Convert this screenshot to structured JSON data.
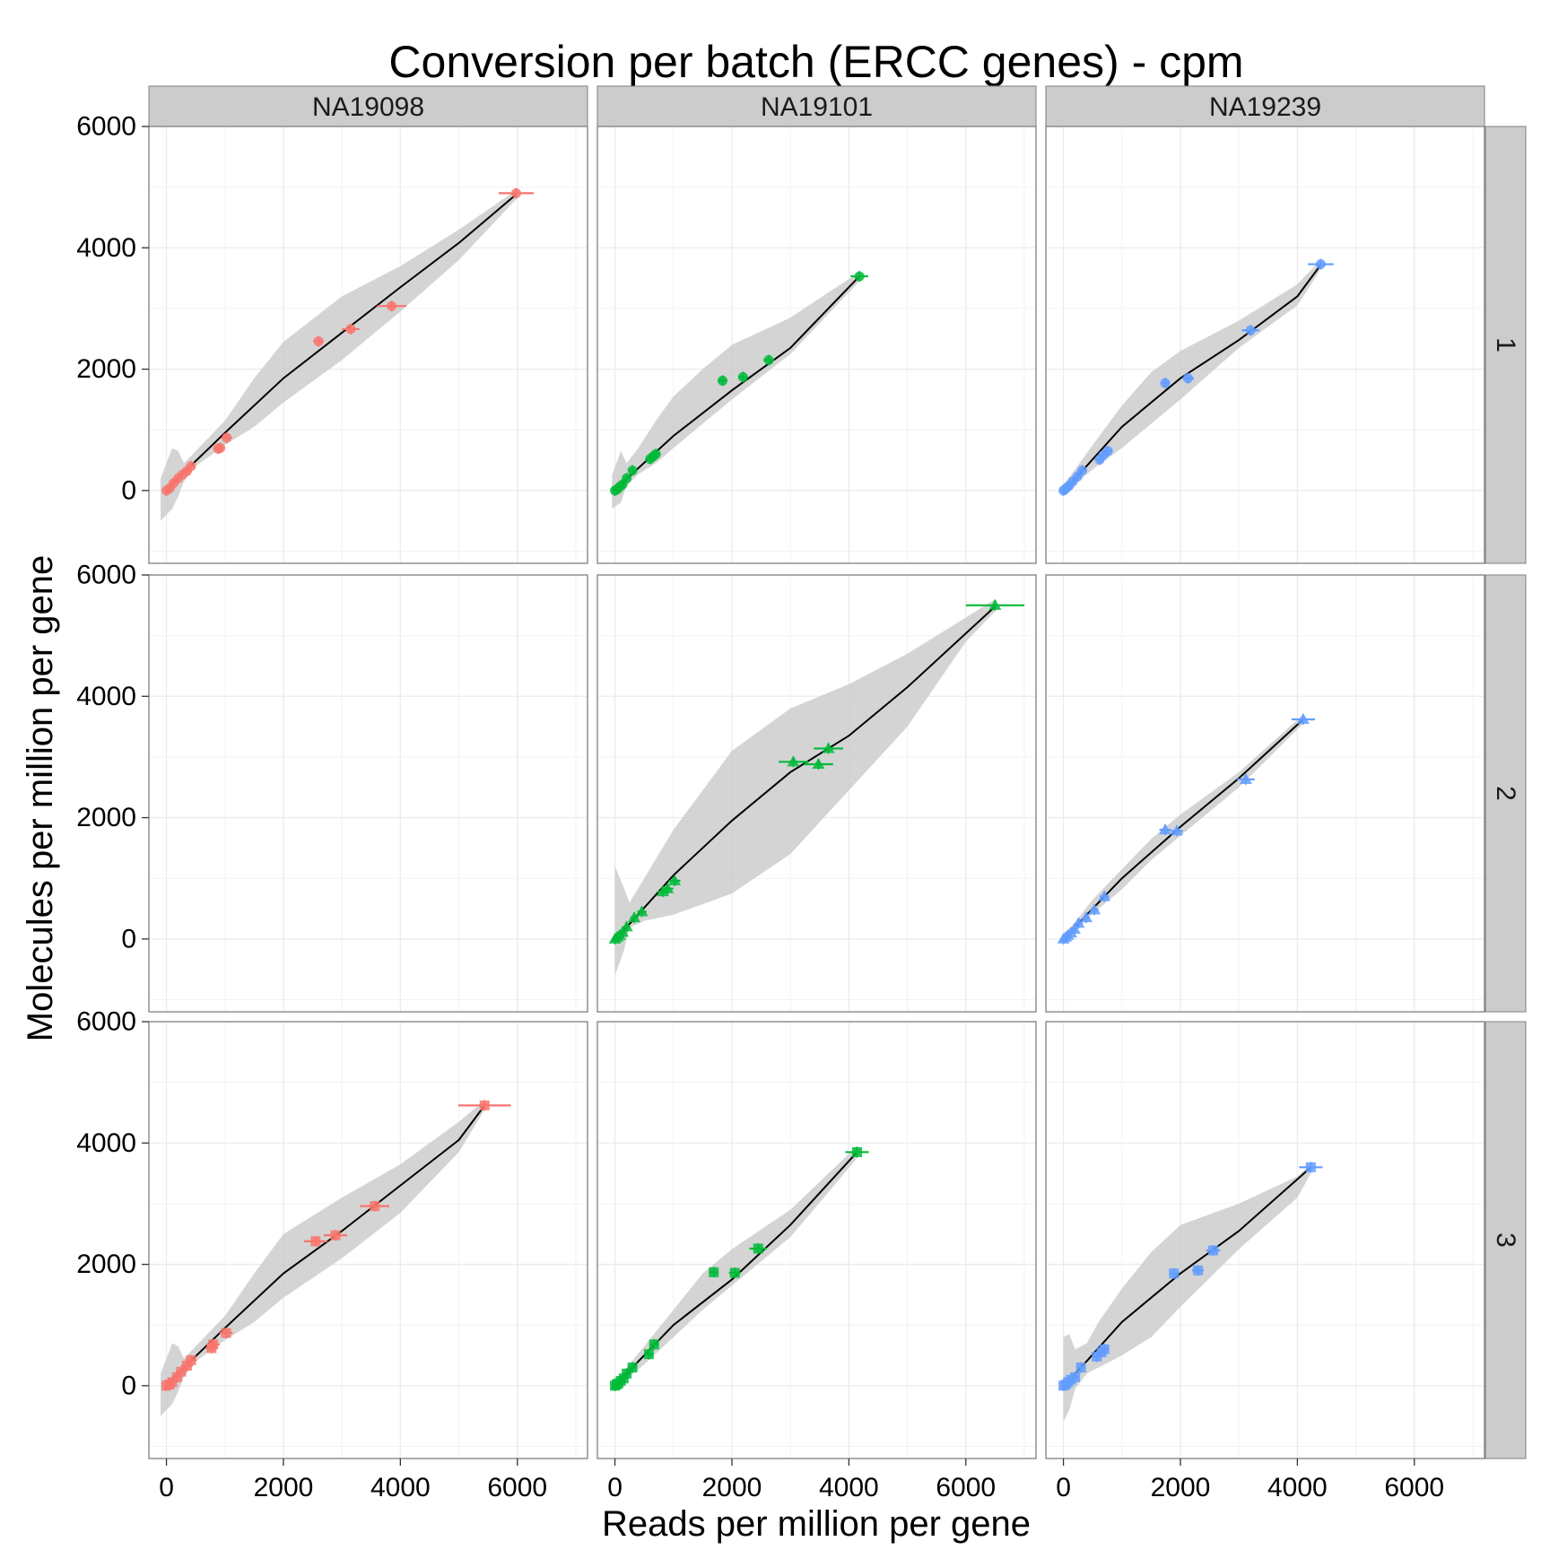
{
  "chart_data": {
    "type": "scatter",
    "title": "Conversion per batch (ERCC genes) - cpm",
    "xlabel": "Reads per million per gene",
    "ylabel": "Molecules per million per gene",
    "xlim": [
      -300,
      7200
    ],
    "ylim": [
      -1200,
      6000
    ],
    "xticks": [
      0,
      2000,
      4000,
      6000
    ],
    "yticks": [
      0,
      2000,
      4000,
      6000
    ],
    "grid": true,
    "column_facets": [
      "NA19098",
      "NA19101",
      "NA19239"
    ],
    "row_facets": [
      "1",
      "2",
      "3"
    ],
    "colors": {
      "NA19098": "#F8766D",
      "NA19101": "#00BA38",
      "NA19239": "#619CFF",
      "fit": "#000000",
      "band": "#cccccc",
      "strip": "#cccccc",
      "panel_border": "#7f7f7f",
      "grid": "#ebebeb"
    },
    "series": [
      {
        "row": "1",
        "col": "NA19098",
        "marker": "circle",
        "points": [
          [
            0,
            0,
            40
          ],
          [
            60,
            40,
            50
          ],
          [
            120,
            120,
            60
          ],
          [
            200,
            200,
            70
          ],
          [
            270,
            260,
            80
          ],
          [
            350,
            320,
            70
          ],
          [
            420,
            400,
            70
          ],
          [
            880,
            690,
            80
          ],
          [
            920,
            700,
            80
          ],
          [
            1030,
            870,
            90
          ],
          [
            2600,
            2460,
            90
          ],
          [
            3150,
            2660,
            150
          ],
          [
            3850,
            3040,
            250
          ],
          [
            5980,
            4900,
            300
          ]
        ],
        "fit": [
          [
            0,
            0
          ],
          [
            300,
            300
          ],
          [
            1000,
            950
          ],
          [
            2000,
            1850
          ],
          [
            3000,
            2600
          ],
          [
            4000,
            3350
          ],
          [
            5000,
            4080
          ],
          [
            5980,
            4880
          ]
        ],
        "band": [
          [
            -100,
            -500,
            200
          ],
          [
            100,
            -300,
            700
          ],
          [
            200,
            -100,
            650
          ],
          [
            300,
            150,
            450
          ],
          [
            500,
            400,
            650
          ],
          [
            1000,
            750,
            1150
          ],
          [
            1500,
            1050,
            1850
          ],
          [
            2000,
            1450,
            2450
          ],
          [
            3000,
            2150,
            3200
          ],
          [
            4000,
            2950,
            3700
          ],
          [
            5000,
            3800,
            4300
          ],
          [
            5980,
            4800,
            4950
          ]
        ]
      },
      {
        "row": "1",
        "col": "NA19101",
        "marker": "circle",
        "points": [
          [
            0,
            0,
            40
          ],
          [
            40,
            20,
            40
          ],
          [
            80,
            60,
            50
          ],
          [
            130,
            100,
            50
          ],
          [
            200,
            200,
            50
          ],
          [
            300,
            330,
            60
          ],
          [
            600,
            520,
            70
          ],
          [
            650,
            560,
            70
          ],
          [
            700,
            600,
            70
          ],
          [
            1840,
            1810,
            80
          ],
          [
            2190,
            1870,
            80
          ],
          [
            2630,
            2150,
            90
          ],
          [
            4180,
            3530,
            150
          ]
        ],
        "fit": [
          [
            0,
            0
          ],
          [
            300,
            280
          ],
          [
            1000,
            900
          ],
          [
            2000,
            1650
          ],
          [
            3000,
            2350
          ],
          [
            4180,
            3530
          ]
        ],
        "band": [
          [
            -50,
            -300,
            250
          ],
          [
            100,
            -200,
            650
          ],
          [
            200,
            80,
            450
          ],
          [
            400,
            270,
            700
          ],
          [
            700,
            450,
            1150
          ],
          [
            1000,
            700,
            1550
          ],
          [
            1500,
            1100,
            2000
          ],
          [
            2000,
            1500,
            2400
          ],
          [
            3000,
            2250,
            2850
          ],
          [
            4180,
            3450,
            3600
          ]
        ]
      },
      {
        "row": "1",
        "col": "NA19239",
        "marker": "circle",
        "points": [
          [
            0,
            0,
            40
          ],
          [
            30,
            20,
            40
          ],
          [
            60,
            50,
            50
          ],
          [
            100,
            80,
            50
          ],
          [
            160,
            150,
            50
          ],
          [
            240,
            230,
            60
          ],
          [
            320,
            330,
            60
          ],
          [
            620,
            510,
            70
          ],
          [
            680,
            580,
            70
          ],
          [
            760,
            650,
            70
          ],
          [
            1740,
            1770,
            80
          ],
          [
            2130,
            1850,
            100
          ],
          [
            3200,
            2640,
            150
          ],
          [
            4400,
            3730,
            220
          ]
        ],
        "fit": [
          [
            0,
            0
          ],
          [
            300,
            300
          ],
          [
            1000,
            1050
          ],
          [
            2000,
            1850
          ],
          [
            3000,
            2480
          ],
          [
            4000,
            3200
          ],
          [
            4400,
            3720
          ]
        ],
        "band": [
          [
            -30,
            -50,
            50
          ],
          [
            200,
            100,
            350
          ],
          [
            500,
            350,
            750
          ],
          [
            1000,
            700,
            1400
          ],
          [
            1500,
            1100,
            1950
          ],
          [
            2000,
            1500,
            2300
          ],
          [
            3000,
            2350,
            2800
          ],
          [
            4000,
            3050,
            3400
          ],
          [
            4400,
            3650,
            3800
          ]
        ]
      },
      {
        "row": "2",
        "col": "NA19098",
        "marker": "circle",
        "points": [],
        "fit": [],
        "band": []
      },
      {
        "row": "2",
        "col": "NA19101",
        "marker": "triangle",
        "points": [
          [
            0,
            0,
            40
          ],
          [
            40,
            30,
            40
          ],
          [
            80,
            60,
            50
          ],
          [
            130,
            110,
            50
          ],
          [
            200,
            200,
            60
          ],
          [
            330,
            350,
            70
          ],
          [
            460,
            450,
            80
          ],
          [
            820,
            780,
            100
          ],
          [
            900,
            830,
            100
          ],
          [
            1020,
            960,
            100
          ],
          [
            3050,
            2920,
            250
          ],
          [
            3480,
            2880,
            250
          ],
          [
            3650,
            3140,
            250
          ],
          [
            6500,
            5500,
            500
          ]
        ],
        "fit": [
          [
            0,
            0
          ],
          [
            300,
            300
          ],
          [
            1000,
            1050
          ],
          [
            2000,
            1950
          ],
          [
            3000,
            2750
          ],
          [
            4000,
            3350
          ],
          [
            5000,
            4150
          ],
          [
            6500,
            5480
          ]
        ],
        "band": [
          [
            0,
            -600,
            1200
          ],
          [
            150,
            -200,
            850
          ],
          [
            250,
            180,
            600
          ],
          [
            500,
            300,
            1000
          ],
          [
            1000,
            400,
            1800
          ],
          [
            2000,
            750,
            3100
          ],
          [
            3000,
            1400,
            3800
          ],
          [
            4000,
            2450,
            4200
          ],
          [
            5000,
            3500,
            4700
          ],
          [
            6000,
            4900,
            5300
          ],
          [
            6500,
            5400,
            5600
          ]
        ]
      },
      {
        "row": "2",
        "col": "NA19239",
        "marker": "triangle",
        "points": [
          [
            0,
            0,
            40
          ],
          [
            40,
            30,
            40
          ],
          [
            80,
            60,
            50
          ],
          [
            130,
            100,
            50
          ],
          [
            190,
            160,
            50
          ],
          [
            260,
            260,
            60
          ],
          [
            390,
            350,
            60
          ],
          [
            530,
            480,
            70
          ],
          [
            700,
            700,
            80
          ],
          [
            1740,
            1800,
            100
          ],
          [
            1940,
            1780,
            100
          ],
          [
            3120,
            2630,
            150
          ],
          [
            4100,
            3620,
            200
          ]
        ],
        "fit": [
          [
            0,
            0
          ],
          [
            300,
            300
          ],
          [
            1000,
            1000
          ],
          [
            2000,
            1850
          ],
          [
            3000,
            2650
          ],
          [
            4100,
            3620
          ]
        ],
        "band": [
          [
            -30,
            -50,
            50
          ],
          [
            200,
            120,
            280
          ],
          [
            500,
            420,
            650
          ],
          [
            1000,
            820,
            1150
          ],
          [
            1500,
            1300,
            1650
          ],
          [
            2000,
            1700,
            2050
          ],
          [
            3000,
            2500,
            2750
          ],
          [
            4100,
            3550,
            3700
          ]
        ]
      },
      {
        "row": "3",
        "col": "NA19098",
        "marker": "square",
        "points": [
          [
            0,
            0,
            40
          ],
          [
            50,
            20,
            50
          ],
          [
            100,
            60,
            60
          ],
          [
            180,
            140,
            80
          ],
          [
            250,
            230,
            90
          ],
          [
            350,
            330,
            100
          ],
          [
            420,
            420,
            100
          ],
          [
            770,
            620,
            100
          ],
          [
            800,
            680,
            110
          ],
          [
            1020,
            870,
            110
          ],
          [
            2550,
            2380,
            200
          ],
          [
            2890,
            2480,
            200
          ],
          [
            3560,
            2960,
            250
          ],
          [
            5440,
            4620,
            450
          ]
        ],
        "fit": [
          [
            0,
            0
          ],
          [
            300,
            300
          ],
          [
            1000,
            950
          ],
          [
            2000,
            1850
          ],
          [
            3000,
            2550
          ],
          [
            4000,
            3300
          ],
          [
            5000,
            4050
          ],
          [
            5440,
            4620
          ]
        ],
        "band": [
          [
            -100,
            -500,
            200
          ],
          [
            100,
            -300,
            700
          ],
          [
            200,
            -100,
            650
          ],
          [
            300,
            150,
            450
          ],
          [
            500,
            400,
            650
          ],
          [
            1000,
            750,
            1150
          ],
          [
            1500,
            1050,
            1850
          ],
          [
            2000,
            1450,
            2500
          ],
          [
            3000,
            2100,
            3100
          ],
          [
            4000,
            2850,
            3650
          ],
          [
            5000,
            3850,
            4350
          ],
          [
            5440,
            4550,
            4700
          ]
        ]
      },
      {
        "row": "3",
        "col": "NA19101",
        "marker": "square",
        "points": [
          [
            0,
            0,
            40
          ],
          [
            30,
            20,
            40
          ],
          [
            60,
            40,
            50
          ],
          [
            100,
            80,
            50
          ],
          [
            150,
            120,
            50
          ],
          [
            200,
            200,
            60
          ],
          [
            300,
            300,
            60
          ],
          [
            580,
            520,
            70
          ],
          [
            670,
            680,
            70
          ],
          [
            1690,
            1870,
            80
          ],
          [
            2050,
            1860,
            100
          ],
          [
            2450,
            2260,
            150
          ],
          [
            4140,
            3850,
            200
          ]
        ],
        "fit": [
          [
            0,
            0
          ],
          [
            300,
            300
          ],
          [
            1000,
            1000
          ],
          [
            2000,
            1750
          ],
          [
            3000,
            2650
          ],
          [
            4140,
            3850
          ]
        ],
        "band": [
          [
            -30,
            -50,
            50
          ],
          [
            200,
            120,
            300
          ],
          [
            500,
            350,
            650
          ],
          [
            1000,
            800,
            1250
          ],
          [
            1500,
            1250,
            1850
          ],
          [
            2000,
            1650,
            2250
          ],
          [
            3000,
            2450,
            2900
          ],
          [
            4140,
            3750,
            3950
          ]
        ]
      },
      {
        "row": "3",
        "col": "NA19239",
        "marker": "square",
        "points": [
          [
            0,
            0,
            40
          ],
          [
            40,
            20,
            40
          ],
          [
            80,
            60,
            50
          ],
          [
            130,
            100,
            50
          ],
          [
            200,
            140,
            60
          ],
          [
            300,
            300,
            60
          ],
          [
            570,
            480,
            70
          ],
          [
            650,
            550,
            70
          ],
          [
            700,
            600,
            70
          ],
          [
            1890,
            1850,
            80
          ],
          [
            2300,
            1900,
            100
          ],
          [
            2560,
            2230,
            120
          ],
          [
            4230,
            3600,
            200
          ]
        ],
        "fit": [
          [
            0,
            0
          ],
          [
            300,
            300
          ],
          [
            1000,
            1050
          ],
          [
            2000,
            1850
          ],
          [
            3000,
            2550
          ],
          [
            4230,
            3600
          ]
        ],
        "band": [
          [
            0,
            -600,
            800
          ],
          [
            100,
            -400,
            850
          ],
          [
            200,
            -50,
            600
          ],
          [
            400,
            200,
            700
          ],
          [
            600,
            300,
            1050
          ],
          [
            1000,
            500,
            1600
          ],
          [
            1500,
            800,
            2200
          ],
          [
            2000,
            1300,
            2650
          ],
          [
            3000,
            2250,
            3000
          ],
          [
            4000,
            3100,
            3450
          ],
          [
            4230,
            3500,
            3650
          ]
        ]
      }
    ]
  }
}
